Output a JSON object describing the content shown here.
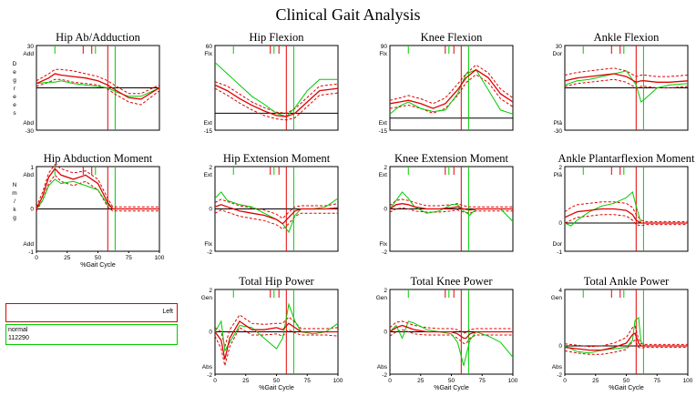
{
  "title": "Clinical Gait Analysis",
  "legend": {
    "left_label": "Left",
    "normal_label": "normal",
    "normal_id": "112290"
  },
  "colors": {
    "left": "#e00000",
    "normal": "#00cc00",
    "axis": "#000000"
  },
  "x_ticks": [
    0,
    25,
    50,
    75,
    100
  ],
  "x_label": "%Gait Cycle",
  "chart_data": [
    {
      "type": "line",
      "title": "Hip Ab/Adduction",
      "ylim": [
        -30,
        30
      ],
      "top_label": "30",
      "bottom_label": "-30",
      "upper_label": "Add",
      "lower_label": "Abd",
      "ylabel": "D e g r e e s",
      "zero": 0,
      "show_xaxis": false,
      "events": {
        "left_off": 58,
        "normal_off": 64,
        "left_marks": [
          38,
          45
        ],
        "normal_marks": [
          15,
          48
        ]
      },
      "x": [
        0,
        10,
        15,
        20,
        30,
        40,
        50,
        58,
        65,
        75,
        85,
        100
      ],
      "normal": [
        3,
        4,
        4,
        5,
        3,
        2,
        1,
        0,
        -3,
        -6,
        -6,
        0
      ],
      "left": [
        3,
        7,
        10,
        9,
        8,
        7,
        5,
        2,
        -2,
        -7,
        -8,
        0
      ],
      "band_upper": [
        5,
        10,
        13,
        13,
        12,
        10,
        8,
        5,
        1,
        -4,
        -4,
        2
      ],
      "band_lower": [
        1,
        4,
        6,
        6,
        4,
        3,
        2,
        -1,
        -5,
        -10,
        -12,
        -2
      ]
    },
    {
      "type": "line",
      "title": "Hip Flexion",
      "ylim": [
        -15,
        60
      ],
      "top_label": "60",
      "bottom_label": "-15",
      "upper_label": "Flx",
      "lower_label": "Ext",
      "ylabel": "",
      "zero": 0,
      "show_xaxis": false,
      "events": {
        "left_off": 58,
        "normal_off": 64,
        "left_marks": [
          45,
          52
        ],
        "normal_marks": [
          15,
          48
        ]
      },
      "x": [
        0,
        10,
        20,
        30,
        40,
        50,
        58,
        65,
        75,
        85,
        100
      ],
      "normal": [
        45,
        35,
        25,
        15,
        8,
        0,
        -3,
        5,
        20,
        30,
        30
      ],
      "left": [
        25,
        20,
        13,
        7,
        2,
        -2,
        -3,
        0,
        10,
        20,
        22
      ],
      "band_upper": [
        28,
        24,
        17,
        10,
        5,
        1,
        0,
        4,
        14,
        24,
        26
      ],
      "band_lower": [
        22,
        16,
        9,
        3,
        -2,
        -5,
        -6,
        -4,
        6,
        16,
        18
      ]
    },
    {
      "type": "line",
      "title": "Knee Flexion",
      "ylim": [
        -15,
        90
      ],
      "top_label": "90",
      "bottom_label": "-15",
      "upper_label": "Flx",
      "lower_label": "Ext",
      "ylabel": "",
      "zero": 0,
      "show_xaxis": false,
      "events": {
        "left_off": 58,
        "normal_off": 64,
        "left_marks": [
          45,
          52
        ],
        "normal_marks": [
          15,
          48
        ]
      },
      "x": [
        0,
        8,
        15,
        25,
        35,
        45,
        55,
        62,
        70,
        80,
        90,
        100
      ],
      "normal": [
        5,
        15,
        20,
        12,
        8,
        10,
        30,
        55,
        60,
        35,
        10,
        5
      ],
      "left": [
        18,
        20,
        22,
        18,
        12,
        18,
        35,
        50,
        60,
        50,
        30,
        20
      ],
      "band_upper": [
        22,
        25,
        28,
        24,
        18,
        25,
        42,
        55,
        66,
        56,
        36,
        25
      ],
      "band_lower": [
        12,
        14,
        16,
        12,
        6,
        12,
        28,
        44,
        54,
        44,
        24,
        14
      ]
    },
    {
      "type": "line",
      "title": "Ankle Flexion",
      "ylim": [
        -30,
        30
      ],
      "top_label": "30",
      "bottom_label": "-30",
      "upper_label": "Dor",
      "lower_label": "Plā",
      "ylabel": "",
      "zero": 0,
      "show_xaxis": false,
      "events": {
        "left_off": 58,
        "normal_off": 64,
        "left_marks": [
          38,
          45
        ],
        "normal_marks": [
          15,
          48
        ]
      },
      "x": [
        0,
        10,
        20,
        30,
        40,
        50,
        58,
        62,
        65,
        75,
        85,
        100
      ],
      "normal": [
        2,
        5,
        6,
        8,
        10,
        12,
        2,
        -10,
        -8,
        0,
        2,
        3
      ],
      "left": [
        5,
        7,
        8,
        9,
        10,
        8,
        4,
        5,
        5,
        4,
        4,
        5
      ],
      "band_upper": [
        9,
        11,
        12,
        13,
        14,
        12,
        8,
        9,
        9,
        8,
        8,
        9
      ],
      "band_lower": [
        1,
        3,
        4,
        5,
        6,
        4,
        0,
        1,
        1,
        0,
        0,
        1
      ]
    },
    {
      "type": "line",
      "title": "Hip Abduction Moment",
      "ylim": [
        -1,
        1
      ],
      "top_label": "1",
      "bottom_label": "-1",
      "upper_label": "Abd",
      "lower_label": "Add",
      "ylabel": "N m / k g",
      "zero": 0,
      "show_xaxis": true,
      "events": {
        "left_off": 58,
        "normal_off": 64,
        "left_marks": [
          38,
          45
        ],
        "normal_marks": [
          15,
          48
        ]
      },
      "x": [
        0,
        5,
        10,
        15,
        20,
        30,
        40,
        50,
        58,
        62,
        70,
        100
      ],
      "normal": [
        0,
        0.2,
        0.55,
        0.7,
        0.6,
        0.65,
        0.55,
        0.45,
        0.1,
        0,
        0,
        0
      ],
      "left": [
        0,
        0.3,
        0.75,
        0.95,
        0.8,
        0.7,
        0.8,
        0.6,
        0.15,
        0,
        0,
        0
      ],
      "band_upper": [
        0.05,
        0.4,
        0.85,
        1.05,
        0.95,
        0.85,
        0.9,
        0.7,
        0.25,
        0.05,
        0.05,
        0.05
      ],
      "band_lower": [
        -0.05,
        0.2,
        0.6,
        0.8,
        0.65,
        0.55,
        0.65,
        0.45,
        0.05,
        -0.05,
        -0.05,
        -0.05
      ]
    },
    {
      "type": "line",
      "title": "Hip Extension Moment",
      "ylim": [
        -2,
        2
      ],
      "top_label": "2",
      "bottom_label": "-2",
      "upper_label": "Ext",
      "lower_label": "Flx",
      "ylabel": "",
      "zero": 0,
      "show_xaxis": false,
      "events": {
        "left_off": 58,
        "normal_off": 64,
        "left_marks": [
          45,
          52
        ],
        "normal_marks": [
          15,
          48
        ]
      },
      "x": [
        0,
        5,
        10,
        20,
        30,
        40,
        50,
        55,
        60,
        65,
        70,
        80,
        90,
        100
      ],
      "normal": [
        0.5,
        0.8,
        0.4,
        0.2,
        0.1,
        -0.2,
        -0.5,
        -0.7,
        -1.1,
        -0.3,
        0,
        0,
        0.1,
        0.5
      ],
      "left": [
        0.1,
        0.2,
        0.1,
        -0.1,
        -0.2,
        -0.3,
        -0.5,
        -0.7,
        -0.4,
        -0.1,
        0,
        0,
        0,
        0.05
      ],
      "band_upper": [
        0.3,
        0.45,
        0.35,
        0.15,
        0.05,
        -0.05,
        -0.25,
        -0.45,
        -0.15,
        0.1,
        0.15,
        0.15,
        0.15,
        0.25
      ],
      "band_lower": [
        -0.2,
        -0.05,
        -0.15,
        -0.35,
        -0.45,
        -0.55,
        -0.75,
        -0.95,
        -0.7,
        -0.35,
        -0.2,
        -0.2,
        -0.2,
        -0.2
      ]
    },
    {
      "type": "line",
      "title": "Knee Extension Moment",
      "ylim": [
        -2,
        2
      ],
      "top_label": "2",
      "bottom_label": "-2",
      "upper_label": "Ext",
      "lower_label": "Flx",
      "ylabel": "",
      "zero": 0,
      "show_xaxis": false,
      "events": {
        "left_off": 58,
        "normal_off": 64,
        "left_marks": [
          45,
          52
        ],
        "normal_marks": [
          15,
          48
        ]
      },
      "x": [
        0,
        5,
        10,
        15,
        20,
        30,
        40,
        50,
        55,
        60,
        65,
        70,
        80,
        90,
        100
      ],
      "normal": [
        0,
        0.4,
        0.8,
        0.5,
        0.1,
        -0.2,
        -0.1,
        0.2,
        0.2,
        -0.1,
        -0.3,
        0,
        0,
        0,
        -0.6
      ],
      "left": [
        0,
        0.2,
        0.25,
        0.2,
        0.1,
        0,
        0,
        0.05,
        0.1,
        0,
        -0.05,
        0,
        0,
        0,
        0
      ],
      "band_upper": [
        0.15,
        0.4,
        0.45,
        0.4,
        0.3,
        0.15,
        0.15,
        0.2,
        0.25,
        0.15,
        0.1,
        0.1,
        0.1,
        0.1,
        0.1
      ],
      "band_lower": [
        -0.15,
        0,
        0.05,
        0,
        -0.1,
        -0.15,
        -0.15,
        -0.1,
        -0.05,
        -0.15,
        -0.2,
        -0.1,
        -0.1,
        -0.1,
        -0.1
      ]
    },
    {
      "type": "line",
      "title": "Ankle Plantarflexion Moment",
      "ylim": [
        -1,
        2
      ],
      "top_label": "2",
      "bottom_label": "-1",
      "upper_label": "Plā",
      "lower_label": "Dor",
      "ylabel": "",
      "zero": 0,
      "show_xaxis": false,
      "events": {
        "left_off": 58,
        "normal_off": 64,
        "left_marks": [
          38,
          45
        ],
        "normal_marks": [
          15,
          48
        ]
      },
      "x": [
        0,
        5,
        10,
        20,
        30,
        40,
        50,
        55,
        58,
        62,
        66,
        100
      ],
      "normal": [
        0,
        -0.1,
        0.1,
        0.4,
        0.6,
        0.7,
        0.9,
        1.1,
        0.6,
        0,
        0,
        0
      ],
      "left": [
        0.2,
        0.3,
        0.4,
        0.45,
        0.5,
        0.5,
        0.45,
        0.3,
        0.1,
        0,
        0,
        0
      ],
      "band_upper": [
        0.4,
        0.55,
        0.65,
        0.7,
        0.75,
        0.75,
        0.7,
        0.55,
        0.3,
        0.1,
        0.05,
        0.05
      ],
      "band_lower": [
        0,
        0.1,
        0.2,
        0.25,
        0.3,
        0.3,
        0.25,
        0.1,
        -0.05,
        -0.1,
        -0.05,
        -0.05
      ]
    },
    null,
    {
      "type": "line",
      "title": "Total Hip Power",
      "ylim": [
        -2,
        2
      ],
      "top_label": "2",
      "bottom_label": "-2",
      "upper_label": "Gen",
      "lower_label": "Abs",
      "ylabel": "",
      "zero": 0,
      "show_xaxis": true,
      "events": {
        "left_off": 58,
        "normal_off": 64,
        "left_marks": [
          45,
          52
        ],
        "normal_marks": [
          15,
          48
        ]
      },
      "x": [
        0,
        5,
        8,
        12,
        20,
        30,
        40,
        50,
        55,
        60,
        65,
        70,
        80,
        90,
        100
      ],
      "normal": [
        0,
        0.5,
        -0.9,
        -0.5,
        0.3,
        0.2,
        -0.3,
        -0.8,
        -0.3,
        1.3,
        0.5,
        0,
        -0.1,
        0,
        0.4
      ],
      "left": [
        0,
        -0.4,
        -1.3,
        -0.3,
        0.5,
        0.1,
        0.1,
        0.2,
        0.1,
        0.4,
        0.2,
        0,
        0,
        0,
        0
      ],
      "band_upper": [
        0.2,
        0,
        -0.7,
        0.1,
        0.8,
        0.4,
        0.35,
        0.4,
        0.4,
        0.7,
        0.45,
        0.15,
        0.15,
        0.15,
        0.2
      ],
      "band_lower": [
        -0.2,
        -0.8,
        -1.6,
        -0.7,
        0.2,
        -0.15,
        -0.15,
        -0.1,
        -0.2,
        0.1,
        -0.05,
        -0.15,
        -0.15,
        -0.15,
        -0.2
      ]
    },
    {
      "type": "line",
      "title": "Total Knee Power",
      "ylim": [
        -2,
        2
      ],
      "top_label": "2",
      "bottom_label": "-2",
      "upper_label": "Gen",
      "lower_label": "Abs",
      "ylabel": "",
      "zero": 0,
      "show_xaxis": true,
      "events": {
        "left_off": 58,
        "normal_off": 64,
        "left_marks": [
          45,
          52
        ],
        "normal_marks": [
          15,
          48
        ]
      },
      "x": [
        0,
        5,
        10,
        15,
        20,
        30,
        40,
        50,
        55,
        60,
        62,
        65,
        70,
        80,
        90,
        100
      ],
      "normal": [
        0,
        0.3,
        -0.3,
        0.5,
        0.4,
        0.1,
        0,
        -0.1,
        -0.5,
        -1.6,
        -1.1,
        -0.4,
        0,
        -0.2,
        -0.5,
        -1.2
      ],
      "left": [
        0,
        0.2,
        0.3,
        0.2,
        0.1,
        0,
        0,
        0,
        -0.1,
        -0.3,
        -0.3,
        -0.1,
        0,
        0,
        0,
        0
      ],
      "band_upper": [
        0.2,
        0.45,
        0.5,
        0.4,
        0.3,
        0.2,
        0.15,
        0.15,
        0.1,
        -0.05,
        -0.05,
        0.1,
        0.15,
        0.15,
        0.15,
        0.15
      ],
      "band_lower": [
        -0.2,
        0,
        0.1,
        0,
        -0.1,
        -0.15,
        -0.15,
        -0.15,
        -0.3,
        -0.55,
        -0.55,
        -0.3,
        -0.15,
        -0.15,
        -0.15,
        -0.15
      ]
    },
    {
      "type": "line",
      "title": "Total Ankle Power",
      "ylim": [
        -2,
        4
      ],
      "top_label": "4",
      "bottom_label": "-2",
      "upper_label": "Gen",
      "lower_label": "Abs",
      "ylabel": "",
      "zero": 0,
      "show_xaxis": true,
      "events": {
        "left_off": 58,
        "normal_off": 64,
        "left_marks": [
          38,
          45
        ],
        "normal_marks": [
          15,
          48
        ]
      },
      "x": [
        0,
        10,
        20,
        30,
        40,
        50,
        55,
        57,
        60,
        62,
        65,
        70,
        100
      ],
      "normal": [
        0,
        -0.4,
        -0.5,
        -0.3,
        -0.2,
        -0.1,
        0.4,
        1.8,
        2.0,
        0.3,
        0,
        0,
        0
      ],
      "left": [
        -0.1,
        -0.2,
        -0.3,
        -0.3,
        -0.1,
        0.2,
        0.8,
        0.9,
        0.2,
        0,
        0,
        0,
        0
      ],
      "band_upper": [
        0.15,
        0.05,
        -0.05,
        0,
        0.2,
        0.6,
        1.3,
        1.4,
        0.5,
        0.15,
        0.1,
        0.1,
        0.1
      ],
      "band_lower": [
        -0.35,
        -0.5,
        -0.6,
        -0.6,
        -0.45,
        -0.25,
        0.3,
        0.4,
        -0.1,
        -0.15,
        -0.1,
        -0.1,
        -0.1
      ]
    }
  ]
}
